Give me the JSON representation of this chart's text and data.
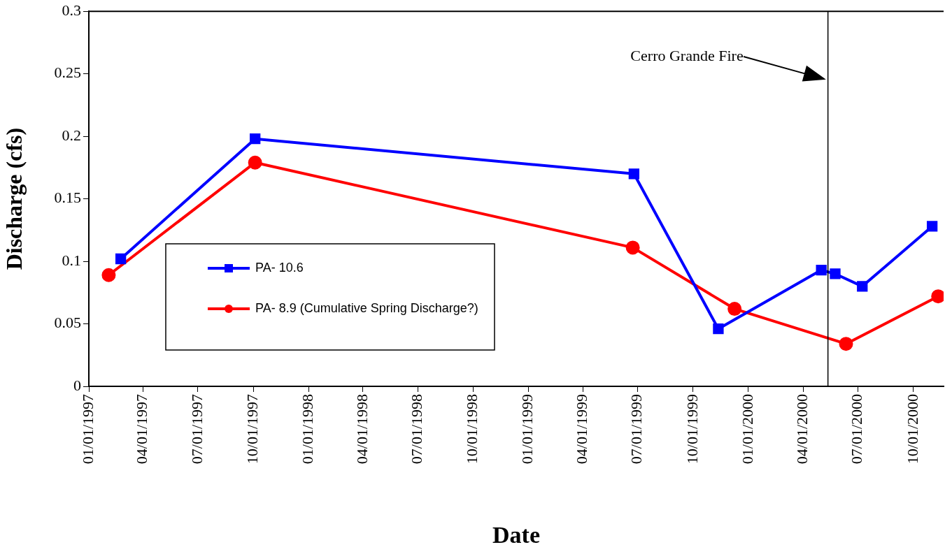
{
  "chart_data": {
    "type": "line",
    "xlabel": "Date",
    "ylabel": "Discharge (cfs)",
    "xlim": [
      "1997-01-01",
      "2000-11-20"
    ],
    "xticks": [
      {
        "value": "1997-01-01",
        "label": "01/01/1997"
      },
      {
        "value": "1997-04-01",
        "label": "04/01/1997"
      },
      {
        "value": "1997-07-01",
        "label": "07/01/1997"
      },
      {
        "value": "1997-10-01",
        "label": "10/01/1997"
      },
      {
        "value": "1998-01-01",
        "label": "01/01/1998"
      },
      {
        "value": "1998-04-01",
        "label": "04/01/1998"
      },
      {
        "value": "1998-07-01",
        "label": "07/01/1998"
      },
      {
        "value": "1998-10-01",
        "label": "10/01/1998"
      },
      {
        "value": "1999-01-01",
        "label": "01/01/1999"
      },
      {
        "value": "1999-04-01",
        "label": "04/01/1999"
      },
      {
        "value": "1999-07-01",
        "label": "07/01/1999"
      },
      {
        "value": "1999-10-01",
        "label": "10/01/1999"
      },
      {
        "value": "2000-01-01",
        "label": "01/01/2000"
      },
      {
        "value": "2000-04-01",
        "label": "04/01/2000"
      },
      {
        "value": "2000-07-01",
        "label": "07/01/2000"
      },
      {
        "value": "2000-10-01",
        "label": "10/01/2000"
      }
    ],
    "ylim": [
      0,
      0.3
    ],
    "yticks": [
      0,
      0.05,
      0.1,
      0.15,
      0.2,
      0.25,
      0.3
    ],
    "grid": false,
    "legend": "center left",
    "line_style": "solid",
    "series": [
      {
        "name": "PA- 10.6",
        "color": "#0000ff",
        "marker": "square",
        "x": [
          "1997-02-23",
          "1997-10-04",
          "1999-06-25",
          "1999-11-12",
          "2000-05-01",
          "2000-05-24",
          "2000-07-08",
          "2000-11-01"
        ],
        "values": [
          0.102,
          0.198,
          0.17,
          0.046,
          0.093,
          0.09,
          0.08,
          0.128
        ]
      },
      {
        "name": "PA- 8.9 (Cumulative Spring Discharge?)",
        "color": "#ff0000",
        "marker": "circle",
        "x": [
          "1997-02-03",
          "1997-10-04",
          "1999-06-23",
          "1999-12-09",
          "2000-06-11",
          "2000-11-11"
        ],
        "values": [
          0.089,
          0.179,
          0.111,
          0.062,
          0.034,
          0.072
        ]
      }
    ],
    "ref_lines": [
      {
        "axis": "x",
        "value": "2000-05-12",
        "color": "#000000"
      }
    ],
    "annotations": [
      "Cerro Grande Fire"
    ]
  }
}
